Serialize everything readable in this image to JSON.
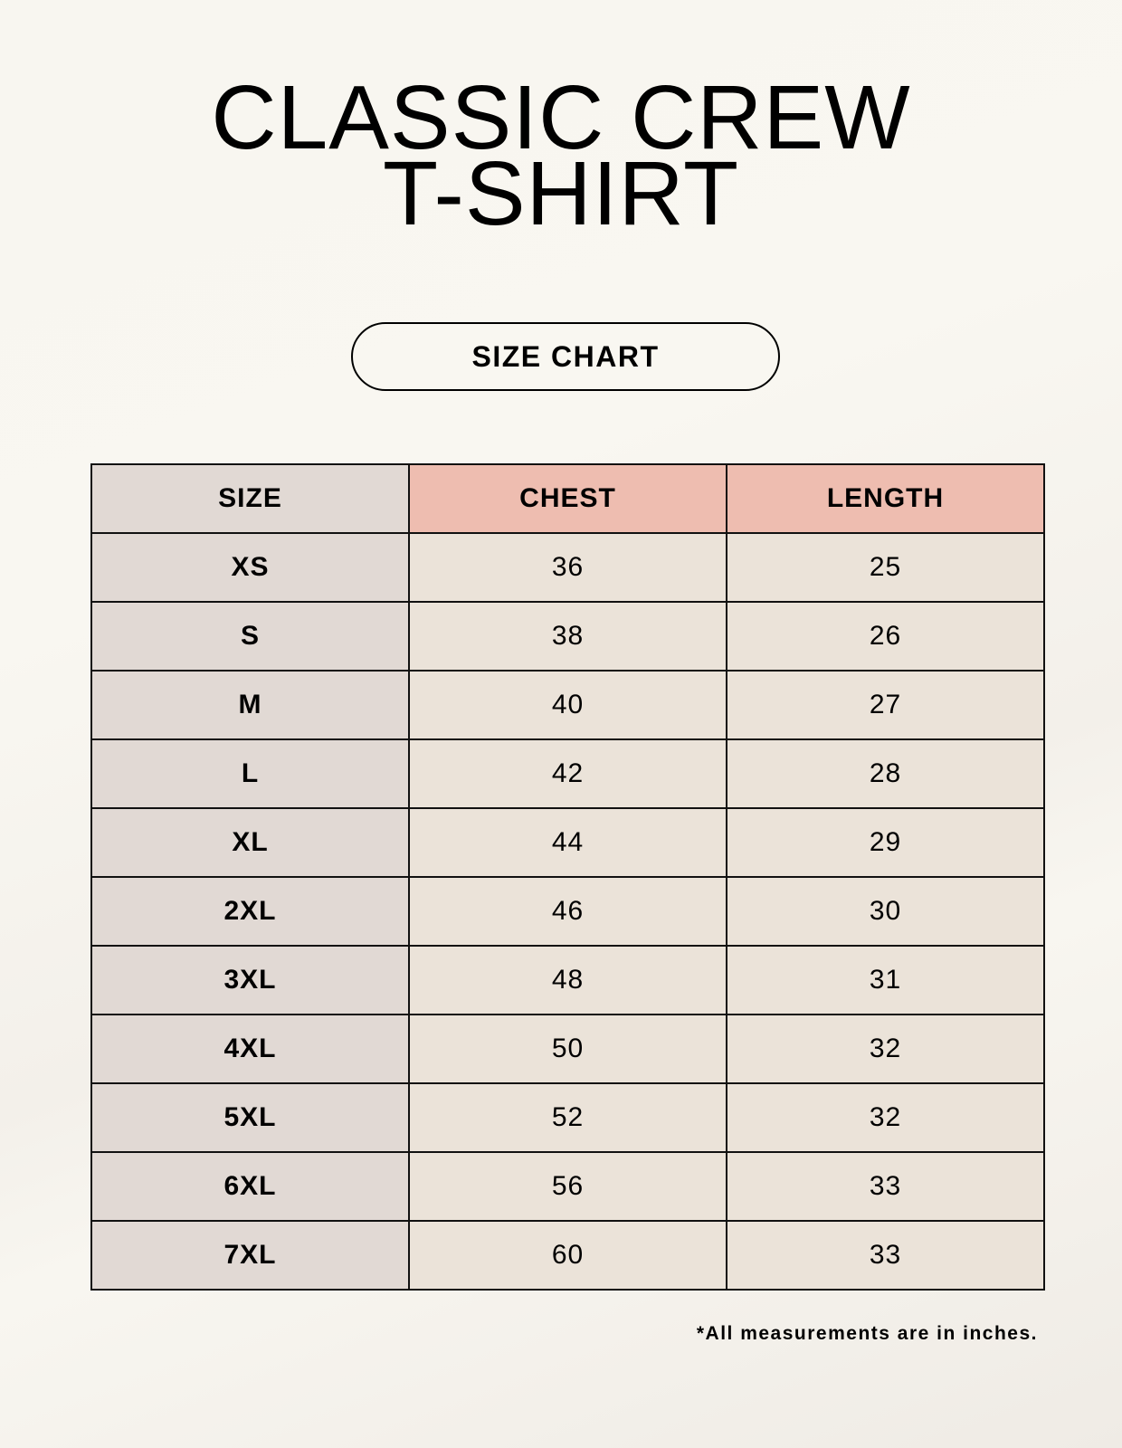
{
  "title": {
    "line1": "CLASSIC CREW",
    "line2": "T-SHIRT"
  },
  "badge": "SIZE CHART",
  "table": {
    "headers": [
      "SIZE",
      "CHEST",
      "LENGTH"
    ],
    "rows": [
      [
        "XS",
        "36",
        "25"
      ],
      [
        "S",
        "38",
        "26"
      ],
      [
        "M",
        "40",
        "27"
      ],
      [
        "L",
        "42",
        "28"
      ],
      [
        "XL",
        "44",
        "29"
      ],
      [
        "2XL",
        "46",
        "30"
      ],
      [
        "3XL",
        "48",
        "31"
      ],
      [
        "4XL",
        "50",
        "32"
      ],
      [
        "5XL",
        "52",
        "32"
      ],
      [
        "6XL",
        "56",
        "33"
      ],
      [
        "7XL",
        "60",
        "33"
      ]
    ]
  },
  "footnote": "*All measurements are in inches.",
  "colors": {
    "size_column": "#e1d9d4",
    "header_accent": "#eebdb0",
    "cell": "#ebe3d9"
  }
}
